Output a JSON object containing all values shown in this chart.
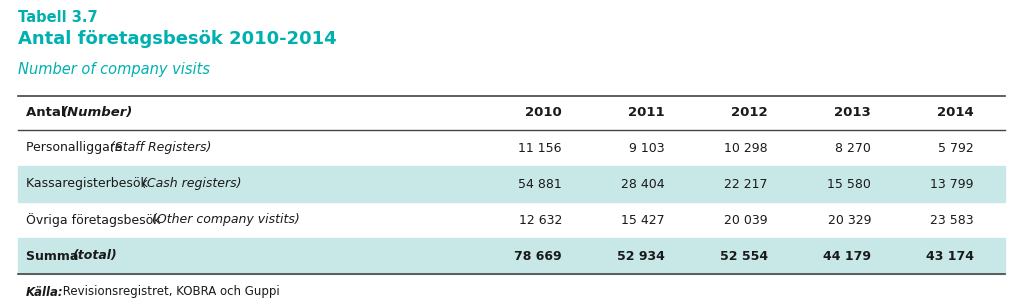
{
  "title_line1": "Tabell 3.7",
  "title_line2": "Antal företagsbesök 2010-2014",
  "subtitle": "Number of company visits",
  "title_color": "#00B0B0",
  "header_row": [
    "Antal (Number)",
    "2010",
    "2011",
    "2012",
    "2013",
    "2014"
  ],
  "rows": [
    [
      "Personalliggare (Staff Registers)",
      "11 156",
      "9 103",
      "10 298",
      "8 270",
      "5 792"
    ],
    [
      "Kassaregisterbesök (Cash registers)",
      "54 881",
      "28 404",
      "22 217",
      "15 580",
      "13 799"
    ],
    [
      "Övriga företagsbesök (Other company vistits)",
      "12 632",
      "15 427",
      "20 039",
      "20 329",
      "23 583"
    ]
  ],
  "total_row": [
    "Summa (total)",
    "78 669",
    "52 934",
    "52 554",
    "44 179",
    "43 174"
  ],
  "footer_bold": "Källa:",
  "footer_normal": " Revisionsregistret, KOBRA och Guppi",
  "shade_color": "#C8E8E8",
  "bg_color": "#FFFFFF",
  "text_color": "#1a1a1a"
}
